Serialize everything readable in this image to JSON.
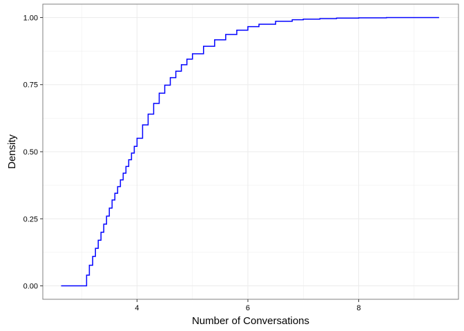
{
  "chart_data": {
    "type": "line",
    "xlabel": "Number of Conversations",
    "ylabel": "Density",
    "xlim": [
      2.3,
      9.8
    ],
    "ylim": [
      -0.05,
      1.05
    ],
    "x_ticks": [
      4,
      6,
      8
    ],
    "x_tick_labels": [
      "4",
      "6",
      "8"
    ],
    "y_ticks": [
      0,
      0.25,
      0.5,
      0.75,
      1
    ],
    "y_tick_labels": [
      "0.00",
      "0.25",
      "0.50",
      "0.75",
      "1.00"
    ],
    "grid": true,
    "step": true,
    "colors": {
      "line": "#0000ff",
      "grid": "#ebebeb",
      "border": "#7f7f7f"
    },
    "series": [
      {
        "x": [
          2.63,
          3.09,
          3.14,
          3.2,
          3.25,
          3.3,
          3.35,
          3.4,
          3.45,
          3.5,
          3.55,
          3.6,
          3.65,
          3.7,
          3.75,
          3.8,
          3.85,
          3.9,
          3.95,
          4.0,
          4.1,
          4.2,
          4.3,
          4.4,
          4.5,
          4.6,
          4.7,
          4.8,
          4.9,
          5.0,
          5.2,
          5.4,
          5.6,
          5.8,
          6.0,
          6.2,
          6.5,
          6.8,
          7.0,
          7.3,
          7.6,
          8.0,
          8.5,
          9.0,
          9.45
        ],
        "y": [
          0.0,
          0.04,
          0.077,
          0.11,
          0.14,
          0.17,
          0.2,
          0.23,
          0.26,
          0.29,
          0.32,
          0.345,
          0.37,
          0.395,
          0.42,
          0.445,
          0.47,
          0.495,
          0.52,
          0.55,
          0.6,
          0.64,
          0.68,
          0.718,
          0.748,
          0.776,
          0.8,
          0.824,
          0.845,
          0.865,
          0.893,
          0.917,
          0.937,
          0.953,
          0.966,
          0.975,
          0.986,
          0.992,
          0.994,
          0.996,
          0.998,
          0.999,
          1.0,
          1.0,
          1.0
        ]
      }
    ]
  }
}
